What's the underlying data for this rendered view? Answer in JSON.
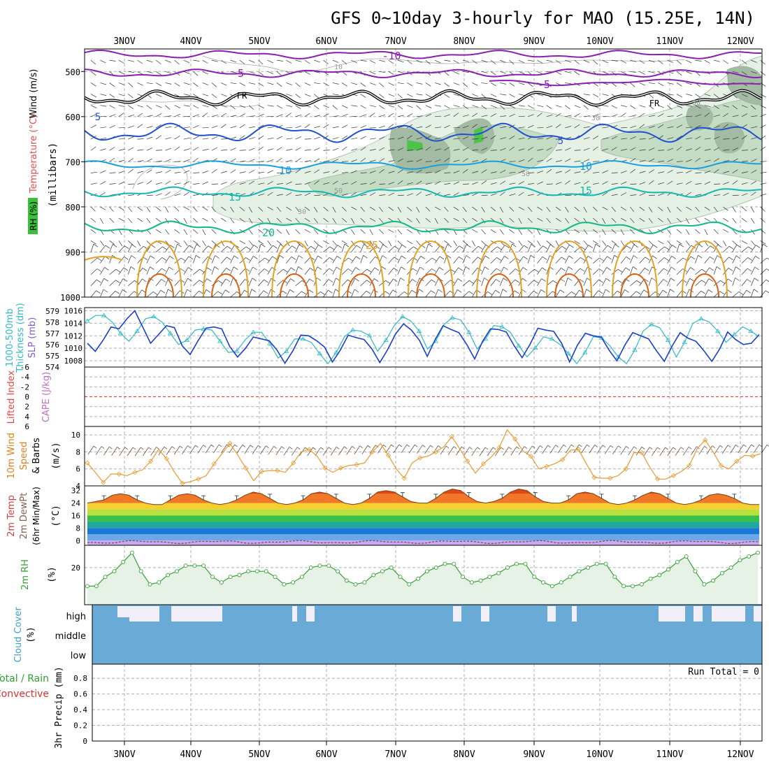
{
  "title": "GFS 0~10day 3-hourly for MAO (15.25E, 14N)",
  "days": [
    "3NOV",
    "4NOV",
    "5NOV",
    "6NOV",
    "7NOV",
    "8NOV",
    "9NOV",
    "10NOV",
    "11NOV",
    "12NOV"
  ],
  "colors": {
    "purple": "#8a1fb0",
    "blue": "#2050d0",
    "cyan": "#1a9fe0",
    "teal": "#14b8b0",
    "green": "#10b888",
    "orange": "#e6a020",
    "darkorange": "#d86010",
    "rh_light": "#e4f1e4",
    "rh_mid": "#c3dcc3",
    "rh_dark": "#a3bba3",
    "rh_bright": "#4cc44c",
    "slp": "#1a3fc8",
    "thick": "#30b8c8",
    "li": "#e04848",
    "wind10": "#e89a30",
    "cloud": "#6aaad6",
    "cloud_clear": "#f2eef8",
    "rh2m": "#38a038"
  },
  "panels": {
    "upper": {
      "labels": {
        "wind": "Wind (m/s)",
        "temp": "Temperature (°C)",
        "rh": "RH (%)",
        "units": "(millibars)"
      },
      "yticks": [
        500,
        600,
        700,
        800,
        900,
        1000
      ],
      "contour_labels": {
        "m10": "-10",
        "m5a": "-5",
        "m5b": "-5",
        "fr1": "FR",
        "fr2": "FR",
        "p5a": "5",
        "p5b": "5",
        "p10a": "10",
        "p10b": "10",
        "p15a": "15",
        "p15b": "15",
        "p20": "20",
        "p25": "25",
        "rh10": "10",
        "rh30a": "30",
        "rh30b": "30",
        "rh50a": "50",
        "rh50b": "50",
        "rh30c": "30"
      }
    },
    "slp": {
      "labels": {
        "a": "1000-500mb",
        "b": "Thickness (dm)",
        "c": "SLP (mb)"
      },
      "yticks_left": [
        574,
        575,
        576,
        577,
        578,
        579
      ],
      "yticks_right": [
        1008,
        1010,
        1012,
        1014,
        1016
      ]
    },
    "li": {
      "labels": {
        "a": "Lifted Index",
        "b": "CAPE (J/kg)"
      },
      "yticks": [
        -6,
        -4,
        -2,
        0,
        2,
        4,
        6
      ]
    },
    "wind10": {
      "labels": {
        "a": "10m Wind",
        "b": "Speed",
        "c": "& Barbs",
        "units": "(m/s)"
      },
      "yticks": [
        4,
        6,
        8,
        10
      ]
    },
    "temp2m": {
      "labels": {
        "a": "2m Temp",
        "b": "2m DewPt",
        "c": "(6hr Min/Max)",
        "units": "(°C)"
      },
      "yticks": [
        0,
        8,
        16,
        24,
        32
      ]
    },
    "rh2m": {
      "labels": {
        "a": "2m RH",
        "units": "(%)"
      },
      "yticks": [
        20
      ]
    },
    "cloud": {
      "labels": {
        "a": "Cloud Cover",
        "units": "(%)"
      },
      "rows": [
        "high",
        "middle",
        "low"
      ]
    },
    "precip": {
      "labels": {
        "a": "Total / Rain",
        "b": "Convective",
        "c": "3hr Precip (mm)"
      },
      "run_total": "Run Total = 0",
      "yticks": [
        "0",
        "0.2",
        "0.4",
        "0.6",
        "0.8"
      ]
    }
  },
  "chart_data": [
    {
      "type": "line",
      "name": "10m wind speed (m/s)",
      "ylim": [
        4,
        11
      ],
      "values": [
        6.7,
        5.6,
        4.4,
        5.4,
        5.4,
        5.2,
        5.6,
        5.9,
        6.9,
        8.3,
        7.2,
        5.6,
        4.3,
        4.5,
        4.8,
        5.2,
        6.6,
        7.8,
        9.0,
        7.6,
        6.1,
        4.6,
        5.7,
        5.8,
        5.8,
        5.6,
        6.7,
        8.0,
        8.3,
        7.5,
        6.1,
        5.6,
        6.1,
        6.4,
        6.5,
        6.7,
        8.0,
        9.0,
        7.6,
        6.0,
        4.9,
        6.7,
        7.3,
        7.5,
        8.0,
        8.6,
        9.8,
        8.4,
        6.9,
        5.5,
        6.6,
        7.4,
        8.5,
        10.6,
        9.5,
        8.1,
        7.5,
        6.0,
        6.3,
        6.6,
        7.1,
        8.2,
        8.3,
        6.6,
        5.0,
        4.9,
        4.9,
        5.2,
        6.0,
        7.9,
        7.9,
        6.2,
        4.8,
        4.8,
        5.2,
        5.7,
        6.4,
        8.4,
        9.4,
        8.0,
        6.4,
        6.0,
        6.9,
        7.6,
        7.5,
        7.8
      ]
    },
    {
      "type": "line",
      "name": "SLP (mb)",
      "ylim": [
        1007,
        1016.5
      ],
      "values": [
        1010.8,
        1009.5,
        1011.3,
        1013.4,
        1013.1,
        1014.7,
        1016.0,
        1013.4,
        1010.8,
        1012.2,
        1013.6,
        1013.3,
        1010.4,
        1009.0,
        1011.2,
        1013.2,
        1013.4,
        1013.1,
        1010.3,
        1008.6,
        1010.0,
        1011.8,
        1011.5,
        1011.2,
        1009.7,
        1007.6,
        1009.6,
        1012.1,
        1012.0,
        1011.2,
        1010.2,
        1007.8,
        1009.7,
        1012.1,
        1011.7,
        1011.4,
        1009.9,
        1007.7,
        1009.8,
        1012.3,
        1013.9,
        1012.9,
        1011.3,
        1008.7,
        1011.4,
        1013.6,
        1013.0,
        1012.5,
        1010.6,
        1008.3,
        1011.1,
        1013.1,
        1013.0,
        1012.6,
        1010.4,
        1008.5,
        1010.6,
        1013.2,
        1012.9,
        1012.7,
        1010.8,
        1007.8,
        1010.5,
        1012.4,
        1012.0,
        1011.8,
        1009.7,
        1008.0,
        1010.5,
        1012.5,
        1012.0,
        1011.5,
        1009.6,
        1007.9,
        1010.4,
        1012.5,
        1011.6,
        1011.1,
        1009.6,
        1007.9,
        1009.9,
        1012.6,
        1011.4,
        1010.6,
        1010.8,
        1012.2
      ]
    },
    {
      "type": "line",
      "name": "1000-500mb thickness (dm)",
      "ylim": [
        574,
        579.3
      ],
      "values": [
        578.1,
        578.6,
        578.6,
        578.0,
        577.0,
        576.3,
        577.2,
        578.3,
        578.5,
        578.0,
        577.0,
        576.0,
        576.4,
        577.3,
        577.4,
        577.3,
        576.3,
        575.3,
        575.4,
        576.4,
        577.1,
        577.1,
        576.1,
        574.8,
        575.4,
        576.5,
        576.5,
        576.2,
        575.2,
        574.3,
        575.3,
        576.7,
        577.3,
        577.2,
        576.8,
        575.4,
        576.4,
        577.7,
        578.5,
        578.1,
        577.2,
        575.6,
        576.3,
        577.8,
        578.4,
        578.2,
        577.1,
        575.6,
        576.5,
        577.7,
        577.6,
        577.1,
        575.9,
        574.9,
        575.7,
        576.7,
        576.5,
        576.0,
        575.2,
        574.3,
        575.3,
        576.7,
        576.6,
        575.9,
        574.9,
        574.3,
        575.5,
        577.2,
        577.8,
        577.5,
        576.4,
        574.9,
        576.2,
        577.9,
        578.3,
        578.0,
        577.2,
        576.2,
        576.9,
        577.6,
        577.2,
        576.7
      ]
    },
    {
      "type": "line",
      "name": "2m RH (%)",
      "ylim": [
        0,
        32
      ],
      "values": [
        10,
        10,
        15,
        18,
        23,
        28,
        18,
        11,
        12,
        16,
        18,
        21,
        21,
        21,
        15,
        12,
        15,
        16,
        18,
        18,
        18,
        15,
        11,
        12,
        15,
        20,
        21,
        21,
        18,
        13,
        11,
        12,
        16,
        18,
        20,
        15,
        11,
        14,
        18,
        20,
        22,
        22,
        15,
        12,
        13,
        15,
        17,
        20,
        22,
        22,
        15,
        12,
        10,
        12,
        15,
        18,
        20,
        22,
        22,
        15,
        10,
        10,
        11,
        14,
        16,
        19,
        23,
        26,
        18,
        11,
        13,
        17,
        20,
        24,
        26,
        28
      ]
    },
    {
      "type": "line",
      "name": "2m temperature (°C)",
      "ylim": [
        -3,
        35
      ],
      "values": [
        24,
        25,
        26,
        29,
        30,
        29,
        26,
        24,
        23,
        23,
        26,
        29,
        30,
        29,
        26,
        24,
        23,
        24,
        26,
        29,
        31,
        30,
        27,
        24,
        23,
        24,
        26,
        30,
        31,
        30,
        27,
        24,
        23,
        24,
        27,
        31,
        32,
        31,
        28,
        25,
        24,
        24,
        27,
        31,
        33,
        32,
        28,
        25,
        24,
        25,
        27,
        31,
        33,
        32,
        28,
        25,
        24,
        24,
        26,
        30,
        31,
        30,
        27,
        24,
        23,
        24,
        26,
        29,
        31,
        30,
        27,
        24,
        23,
        24,
        26,
        29,
        30,
        29,
        27,
        24,
        23,
        23
      ]
    }
  ]
}
